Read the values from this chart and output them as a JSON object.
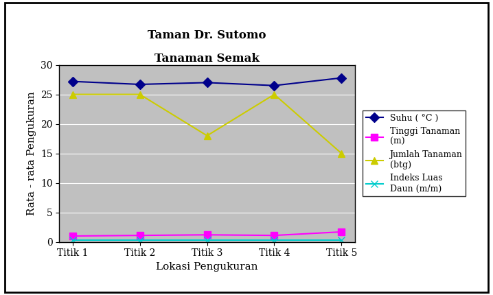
{
  "title_line1": "Taman Dr. Sutomo",
  "title_line2": "Tanaman Semak",
  "xlabel": "Lokasi Pengukuran",
  "ylabel": "Rata - rata Pengukuran",
  "x_labels": [
    "Titik 1",
    "Titik 2",
    "Titik 3",
    "Titik 4",
    "Titik 5"
  ],
  "ylim": [
    0,
    30
  ],
  "yticks": [
    0,
    5,
    10,
    15,
    20,
    25,
    30
  ],
  "series": [
    {
      "label": "Suhu ( °C )",
      "values": [
        27.2,
        26.7,
        27.0,
        26.5,
        27.8
      ],
      "color": "#00008B",
      "marker": "D",
      "marker_facecolor": "#00008B",
      "linewidth": 1.5,
      "markersize": 7
    },
    {
      "label": "Tinggi Tanaman\n(m)",
      "values": [
        1.0,
        1.1,
        1.2,
        1.1,
        1.7
      ],
      "color": "#FF00FF",
      "marker": "s",
      "marker_facecolor": "#FF00FF",
      "linewidth": 1.5,
      "markersize": 7
    },
    {
      "label": "Jumlah Tanaman\n(btg)",
      "values": [
        25,
        25,
        18,
        25,
        15
      ],
      "color": "#CCCC00",
      "marker": "^",
      "marker_facecolor": "#CCCC00",
      "linewidth": 1.5,
      "markersize": 7
    },
    {
      "label": "Indeks Luas\nDaun (m/m)",
      "values": [
        0.3,
        0.3,
        0.3,
        0.3,
        0.3
      ],
      "color": "#00CCCC",
      "marker": "x",
      "marker_facecolor": "#00CCCC",
      "linewidth": 1.5,
      "markersize": 7
    }
  ],
  "plot_bg_color": "#C0C0C0",
  "fig_bg_color": "#FFFFFF",
  "grid_color": "#FFFFFF",
  "outer_box_color": "#000000"
}
